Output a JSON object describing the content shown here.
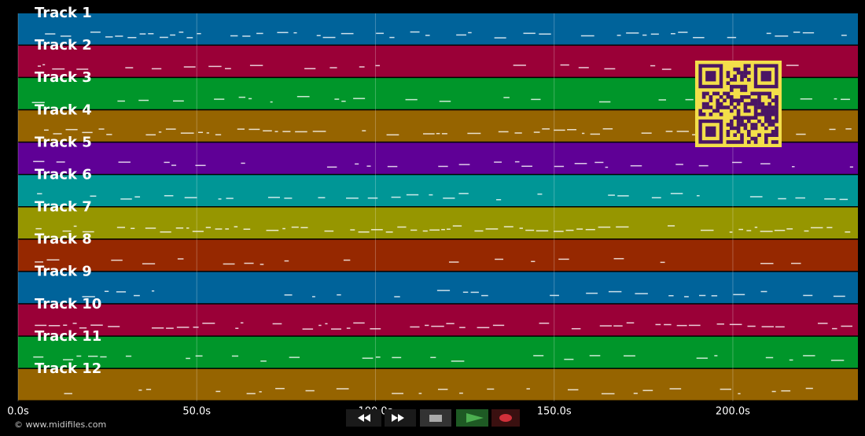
{
  "tracks": [
    {
      "label": "Track 1",
      "color": "#00639a"
    },
    {
      "label": "Track 2",
      "color": "#9a0037"
    },
    {
      "label": "Track 3",
      "color": "#00962a"
    },
    {
      "label": "Track 4",
      "color": "#966400"
    },
    {
      "label": "Track 5",
      "color": "#5f0096"
    },
    {
      "label": "Track 6",
      "color": "#009696"
    },
    {
      "label": "Track 7",
      "color": "#969600"
    },
    {
      "label": "Track 8",
      "color": "#962800"
    },
    {
      "label": "Track 9",
      "color": "#00639a"
    },
    {
      "label": "Track 10",
      "color": "#9a0037"
    },
    {
      "label": "Track 11",
      "color": "#00962a"
    },
    {
      "label": "Track 12",
      "color": "#966400"
    }
  ],
  "axis": {
    "xlim": [
      0,
      235
    ],
    "xticks": [
      {
        "value": 0,
        "label": "0.0s"
      },
      {
        "value": 50,
        "label": "50.0s"
      },
      {
        "value": 100,
        "label": "100.0s"
      },
      {
        "value": 150,
        "label": "150.0s"
      },
      {
        "value": 200,
        "label": "200.0s"
      }
    ]
  },
  "footer": "© www.midifiles.com"
}
